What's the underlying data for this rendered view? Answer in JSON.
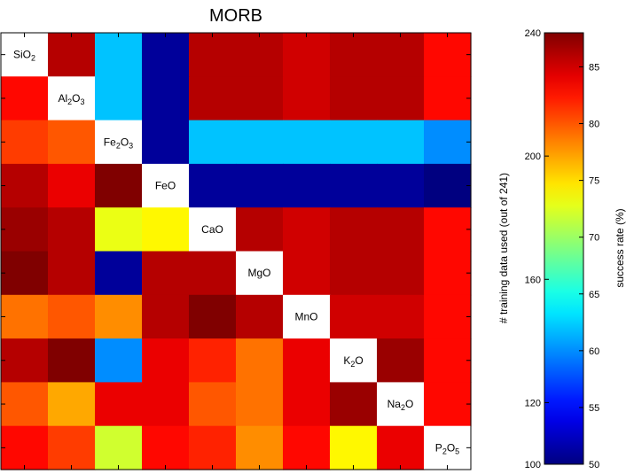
{
  "chart_data": {
    "type": "heatmap",
    "title": "MORB",
    "row_labels": [
      "SiO2",
      "Al2O3",
      "Fe2O3",
      "FeO",
      "CaO",
      "MgO",
      "MnO",
      "K2O",
      "Na2O",
      "P2O5"
    ],
    "col_labels": [
      "SiO2",
      "Al2O3",
      "Fe2O3",
      "FeO",
      "CaO",
      "MgO",
      "MnO",
      "K2O",
      "Na2O",
      "P2O5"
    ],
    "values": [
      [
        null,
        86,
        62,
        51,
        86,
        86,
        85,
        86,
        86,
        83
      ],
      [
        83,
        null,
        62,
        51,
        86,
        86,
        85,
        86,
        86,
        83
      ],
      [
        81,
        80,
        null,
        51,
        62,
        62,
        62,
        62,
        62,
        60
      ],
      [
        86,
        84,
        88,
        null,
        51,
        51,
        51,
        51,
        51,
        50
      ],
      [
        87,
        86,
        73,
        74,
        null,
        86,
        85,
        86,
        86,
        83
      ],
      [
        88,
        86,
        51,
        86,
        86,
        null,
        85,
        86,
        86,
        83
      ],
      [
        79,
        80,
        78,
        86,
        88,
        86,
        null,
        85,
        85,
        83
      ],
      [
        86,
        88,
        60,
        84,
        82,
        79,
        84,
        null,
        87,
        83
      ],
      [
        80,
        77,
        84,
        84,
        80,
        79,
        84,
        87,
        null,
        83
      ],
      [
        83,
        81,
        72,
        83,
        82,
        78,
        83,
        74,
        84,
        null
      ]
    ],
    "colorbar": {
      "label_left": "# training data used (out of 241)",
      "label_right": "success rate (%)",
      "left_range": [
        100,
        240
      ],
      "left_ticks": [
        100,
        120,
        160,
        200,
        240
      ],
      "right_range": [
        50,
        88
      ],
      "right_ticks": [
        50,
        55,
        60,
        65,
        70,
        75,
        80,
        85
      ]
    }
  }
}
